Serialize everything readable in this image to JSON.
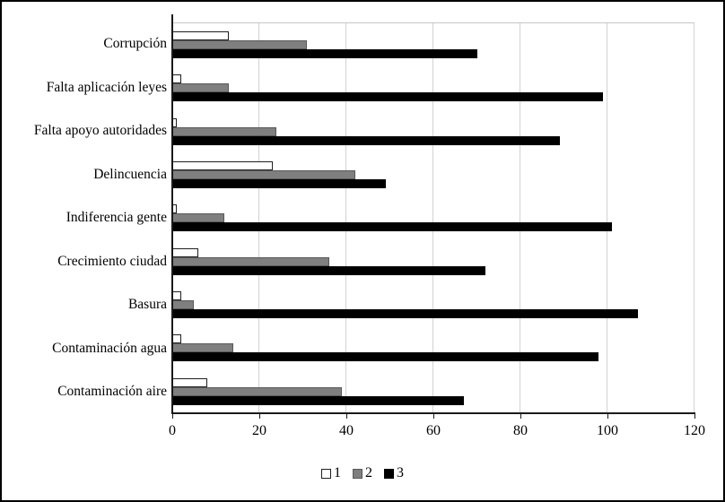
{
  "chart_data": {
    "type": "bar",
    "orientation": "horizontal",
    "title": "",
    "xlabel": "",
    "ylabel": "",
    "xlim": [
      0,
      120
    ],
    "x_ticks": [
      0,
      20,
      40,
      60,
      80,
      100,
      120
    ],
    "grid": "vertical",
    "legend_position": "bottom",
    "categories": [
      "Corrupción",
      "Falta aplicación leyes",
      "Falta apoyo autoridades",
      "Delincuencia",
      "Indiferencia gente",
      "Crecimiento ciudad",
      "Basura",
      "Contaminación agua",
      "Contaminación aire"
    ],
    "series": [
      {
        "name": "1",
        "color": "#ffffff",
        "values": [
          13,
          2,
          1,
          23,
          1,
          6,
          2,
          2,
          8
        ]
      },
      {
        "name": "2",
        "color": "#7f7f7f",
        "values": [
          31,
          13,
          24,
          42,
          12,
          36,
          5,
          14,
          39
        ]
      },
      {
        "name": "3",
        "color": "#000000",
        "values": [
          70,
          99,
          89,
          49,
          101,
          72,
          107,
          98,
          67
        ]
      }
    ]
  },
  "colors": {
    "gridline": "#d2d2d2",
    "axis": "#1a1a1a",
    "figure_border": "#000000"
  }
}
